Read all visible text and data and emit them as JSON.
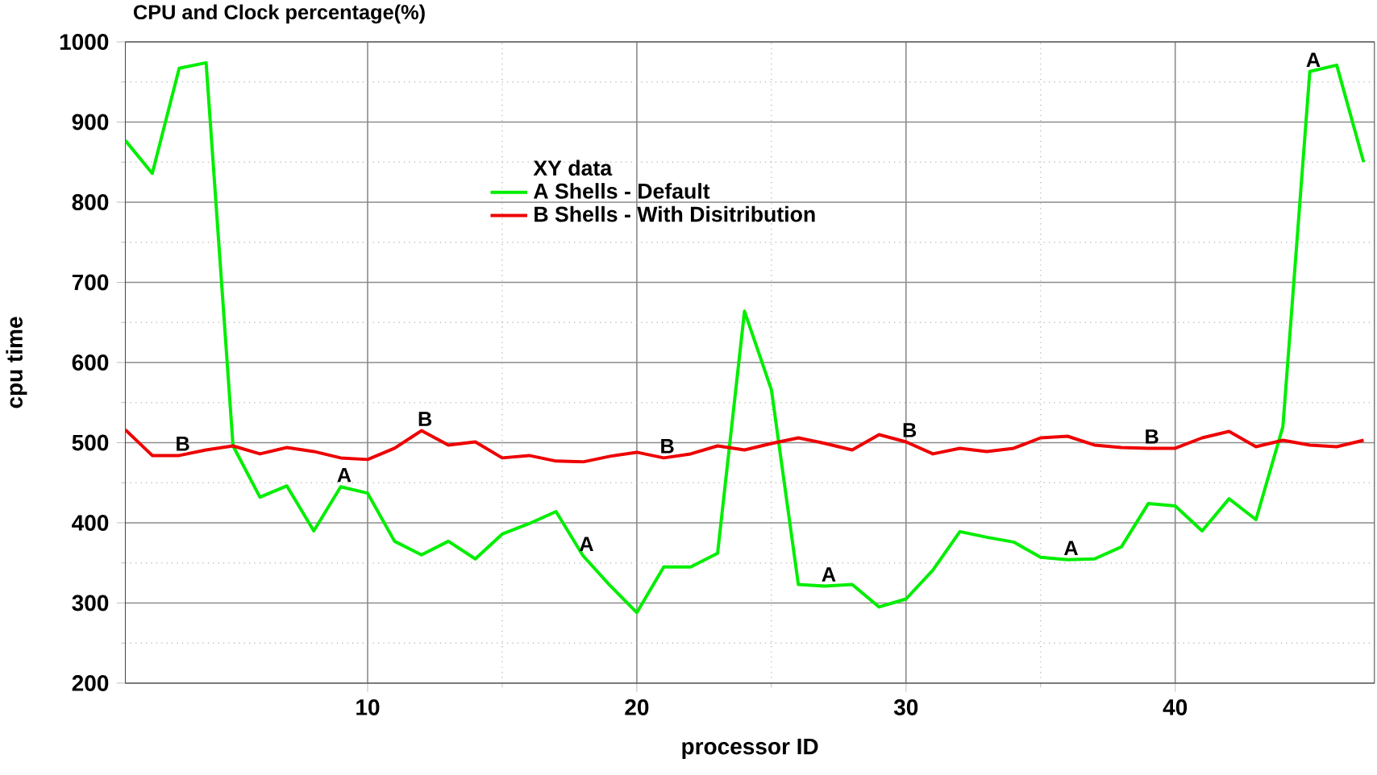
{
  "chart_data": {
    "type": "line",
    "title": "CPU and Clock percentage(%)",
    "xlabel": "processor ID",
    "ylabel": "cpu time",
    "legend_title": "XY data",
    "legend": "top",
    "grid": true,
    "marker": "none",
    "line_style": "solid",
    "xlim": [
      1,
      47.4
    ],
    "xticks": [
      10,
      20,
      30,
      40
    ],
    "ylim": [
      200,
      1000
    ],
    "yticks": [
      200,
      300,
      400,
      500,
      600,
      700,
      800,
      900,
      1000
    ],
    "x": [
      1,
      2,
      3,
      4,
      5,
      6,
      7,
      8,
      9,
      10,
      11,
      12,
      13,
      14,
      15,
      16,
      17,
      18,
      19,
      20,
      21,
      22,
      23,
      24,
      25,
      26,
      27,
      28,
      29,
      30,
      31,
      32,
      33,
      34,
      35,
      36,
      37,
      38,
      39,
      40,
      41,
      42,
      43,
      44,
      45,
      46,
      47
    ],
    "series": [
      {
        "name": "A Shells - Default",
        "color": "#00ee00",
        "values": [
          877,
          836,
          967,
          974,
          496,
          432,
          446,
          390,
          445,
          437,
          377,
          360,
          377,
          355,
          386,
          399,
          414,
          359,
          322,
          288,
          345,
          345,
          362,
          664,
          566,
          323,
          321,
          323,
          295,
          305,
          341,
          389,
          382,
          376,
          357,
          354,
          355,
          370,
          424,
          421,
          390,
          430,
          404,
          520,
          963,
          971,
          850
        ]
      },
      {
        "name": "B Shells - With Disitribution",
        "color": "#ee0000",
        "values": [
          516,
          484,
          484,
          491,
          496,
          486,
          494,
          489,
          481,
          479,
          493,
          515,
          497,
          501,
          481,
          484,
          477,
          476,
          483,
          488,
          481,
          486,
          496,
          491,
          499,
          506,
          499,
          491,
          510,
          501,
          486,
          493,
          489,
          493,
          506,
          508,
          497,
          494,
          493,
          493,
          506,
          514,
          495,
          503,
          497,
          495,
          503
        ]
      }
    ],
    "annotations": [
      {
        "text": "A",
        "x": 9,
        "y": 445
      },
      {
        "text": "A",
        "x": 18,
        "y": 359
      },
      {
        "text": "A",
        "x": 27,
        "y": 321
      },
      {
        "text": "A",
        "x": 36,
        "y": 354
      },
      {
        "text": "A",
        "x": 45,
        "y": 963
      },
      {
        "text": "B",
        "x": 3,
        "y": 484
      },
      {
        "text": "B",
        "x": 12,
        "y": 515
      },
      {
        "text": "B",
        "x": 21,
        "y": 481
      },
      {
        "text": "B",
        "x": 30,
        "y": 501
      },
      {
        "text": "B",
        "x": 39,
        "y": 493
      }
    ]
  }
}
